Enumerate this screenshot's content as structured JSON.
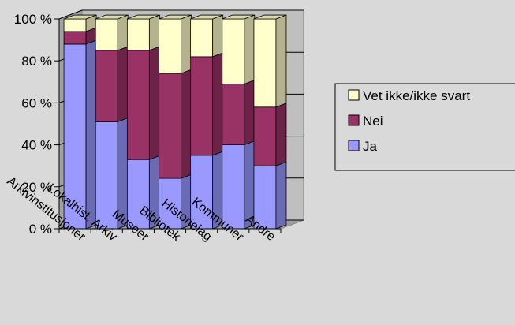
{
  "chart_data": {
    "type": "bar",
    "stacked": "percent",
    "style": "3d-column",
    "categories": [
      "Arkivinstitusjoner",
      "Lokalhist. Arkiv",
      "Museer",
      "Bibliotek",
      "Historielag",
      "Kommuner",
      "Andre"
    ],
    "series": [
      {
        "name": "Ja",
        "color": "#9999ff",
        "values": [
          88,
          51,
          33,
          24,
          35,
          40,
          30
        ]
      },
      {
        "name": "Nei",
        "color": "#993366",
        "values": [
          6,
          34,
          52,
          50,
          47,
          29,
          28
        ]
      },
      {
        "name": "Vet ikke/ikke svart",
        "color": "#ffffcc",
        "values": [
          6,
          15,
          15,
          26,
          18,
          31,
          42
        ]
      }
    ],
    "ylim": [
      0,
      100
    ],
    "yticks": [
      "0 %",
      "20 %",
      "40 %",
      "60 %",
      "80 %",
      "100 %"
    ],
    "grid": true,
    "legend_position": "right",
    "legend_order": [
      "Vet ikke/ikke svart",
      "Nei",
      "Ja"
    ],
    "colors": {
      "background": "#d9d9d9",
      "wall": "#bfbfbf",
      "floor": "#9e9e9e",
      "axis": "#000000"
    }
  }
}
